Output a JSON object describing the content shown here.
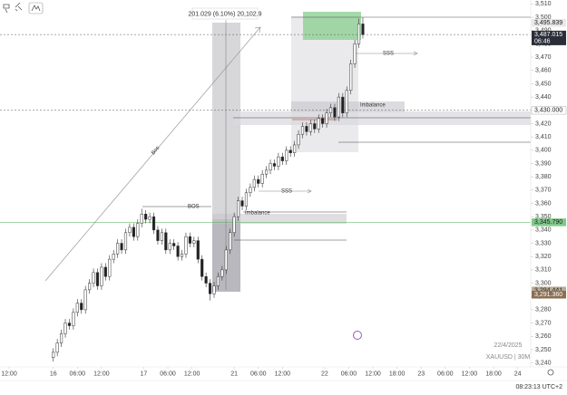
{
  "chart_data": {
    "type": "candlestick",
    "measure_label": "201.029 (6.10%) 20,102.9",
    "annotations": [
      "BOS",
      "Imbalance",
      "Imbalance",
      "SSS",
      "SSS",
      "Bos"
    ],
    "date": "22/4/2025",
    "symbol": "XAUUSD | 30M",
    "clock": "08:23:13 UTC+2",
    "countdown": "06:46",
    "up_color": "#ffffff",
    "down_color": "#222222",
    "xlim": [
      -4.5,
      259.5
    ],
    "ylim": [
      3237,
      3513
    ],
    "xticks": [
      {
        "value": 0,
        "label": "12:00"
      },
      {
        "value": 22,
        "label": "16"
      },
      {
        "value": 34,
        "label": "06:00"
      },
      {
        "value": 46,
        "label": "12:00"
      },
      {
        "value": 67,
        "label": "17"
      },
      {
        "value": 79,
        "label": "06:00"
      },
      {
        "value": 91,
        "label": "12:00"
      },
      {
        "value": 112,
        "label": "21"
      },
      {
        "value": 124,
        "label": "06:00"
      },
      {
        "value": 136,
        "label": "12:00"
      },
      {
        "value": 157,
        "label": "22"
      },
      {
        "value": 169,
        "label": "06:00"
      },
      {
        "value": 181,
        "label": "12:00"
      },
      {
        "value": 193,
        "label": "18:00"
      },
      {
        "value": 205,
        "label": "23"
      },
      {
        "value": 217,
        "label": "06:00"
      },
      {
        "value": 229,
        "label": "12:00"
      },
      {
        "value": 241,
        "label": "18:00"
      },
      {
        "value": 253,
        "label": "24"
      }
    ],
    "yticks": [
      {
        "value": 3510,
        "label": "3,510"
      },
      {
        "value": 3500,
        "label": "3,500"
      },
      {
        "value": 3490,
        "label": "3,490"
      },
      {
        "value": 3480,
        "label": "3,480"
      },
      {
        "value": 3470,
        "label": "3,470"
      },
      {
        "value": 3460,
        "label": "3,460"
      },
      {
        "value": 3450,
        "label": "3,450"
      },
      {
        "value": 3440,
        "label": "3,440"
      },
      {
        "value": 3430,
        "label": "3,430"
      },
      {
        "value": 3420,
        "label": "3,420"
      },
      {
        "value": 3410,
        "label": "3,410"
      },
      {
        "value": 3400,
        "label": "3,400"
      },
      {
        "value": 3390,
        "label": "3,390"
      },
      {
        "value": 3380,
        "label": "3,380"
      },
      {
        "value": 3370,
        "label": "3,370"
      },
      {
        "value": 3360,
        "label": "3,360"
      },
      {
        "value": 3350,
        "label": "3,350"
      },
      {
        "value": 3340,
        "label": "3,340"
      },
      {
        "value": 3330,
        "label": "3,330"
      },
      {
        "value": 3320,
        "label": "3,320"
      },
      {
        "value": 3310,
        "label": "3,310"
      },
      {
        "value": 3300,
        "label": "3,300"
      },
      {
        "value": 3290,
        "label": "3,290"
      },
      {
        "value": 3280,
        "label": "3,280"
      },
      {
        "value": 3270,
        "label": "3,270"
      },
      {
        "value": 3260,
        "label": "3,260"
      },
      {
        "value": 3250,
        "label": "3,250"
      },
      {
        "value": 3240,
        "label": "3,240"
      }
    ],
    "price_labels": [
      {
        "value": 3495.839,
        "label": "3,495.839",
        "color": "#e8e8e8"
      },
      {
        "value": 3487.015,
        "label": "3,487.015",
        "color": "#2a2e39"
      },
      {
        "value": 3430.0,
        "label": "3,430.000",
        "color": "#ffffff"
      },
      {
        "value": 3345.79,
        "label": "3,345.790",
        "color": "#7fc98a"
      },
      {
        "value": 3294.441,
        "label": "3,294.441",
        "color": "#b9ab95"
      },
      {
        "value": 3291.36,
        "label": "3,291.360",
        "color": "#8c6f52"
      }
    ],
    "x": [
      22,
      24,
      26,
      28,
      30,
      32,
      34,
      36,
      38,
      40,
      42,
      44,
      46,
      48,
      50,
      52,
      54,
      56,
      58,
      60,
      62,
      64,
      66,
      68,
      70,
      72,
      74,
      76,
      78,
      80,
      82,
      84,
      86,
      88,
      90,
      92,
      94,
      96,
      98,
      100,
      102,
      104,
      106,
      108,
      110,
      112,
      114,
      116,
      118,
      120,
      122,
      124,
      126,
      128,
      130,
      132,
      134,
      136,
      138,
      140,
      142,
      144,
      146,
      148,
      150,
      152,
      154,
      156,
      158,
      160,
      162,
      164,
      166,
      168,
      170,
      172,
      174,
      176
    ],
    "open": [
      3244,
      3248,
      3255,
      3262,
      3270,
      3268,
      3278,
      3285,
      3280,
      3295,
      3300,
      3308,
      3298,
      3312,
      3305,
      3318,
      3322,
      3330,
      3325,
      3338,
      3342,
      3335,
      3345,
      3352,
      3348,
      3350,
      3340,
      3332,
      3338,
      3325,
      3330,
      3328,
      3320,
      3322,
      3335,
      3330,
      3332,
      3318,
      3305,
      3300,
      3292,
      3298,
      3305,
      3310,
      3325,
      3338,
      3350,
      3362,
      3358,
      3368,
      3372,
      3378,
      3375,
      3382,
      3385,
      3390,
      3388,
      3395,
      3392,
      3400,
      3398,
      3404,
      3412,
      3418,
      3414,
      3420,
      3416,
      3424,
      3420,
      3428,
      3432,
      3425,
      3440,
      3428,
      3445,
      3465,
      3480,
      3495
    ],
    "high": [
      3251,
      3258,
      3265,
      3273,
      3273,
      3281,
      3288,
      3288,
      3298,
      3303,
      3311,
      3311,
      3315,
      3315,
      3321,
      3325,
      3333,
      3333,
      3341,
      3345,
      3345,
      3348,
      3356,
      3355,
      3353,
      3353,
      3343,
      3341,
      3341,
      3333,
      3333,
      3331,
      3325,
      3338,
      3338,
      3335,
      3335,
      3321,
      3308,
      3303,
      3301,
      3308,
      3313,
      3328,
      3341,
      3353,
      3365,
      3365,
      3371,
      3375,
      3381,
      3381,
      3385,
      3388,
      3393,
      3393,
      3398,
      3398,
      3403,
      3403,
      3407,
      3415,
      3421,
      3421,
      3423,
      3423,
      3427,
      3427,
      3431,
      3435,
      3435,
      3443,
      3443,
      3448,
      3468,
      3483,
      3499,
      3500
    ],
    "low": [
      3241,
      3245,
      3252,
      3259,
      3265,
      3265,
      3275,
      3277,
      3277,
      3292,
      3297,
      3295,
      3295,
      3302,
      3302,
      3315,
      3319,
      3322,
      3322,
      3335,
      3332,
      3332,
      3342,
      3345,
      3345,
      3337,
      3329,
      3329,
      3322,
      3322,
      3325,
      3317,
      3317,
      3319,
      3327,
      3327,
      3315,
      3302,
      3297,
      3287,
      3289,
      3295,
      3302,
      3307,
      3322,
      3335,
      3347,
      3355,
      3355,
      3365,
      3369,
      3372,
      3372,
      3379,
      3382,
      3385,
      3385,
      3389,
      3389,
      3395,
      3395,
      3401,
      3409,
      3411,
      3411,
      3413,
      3413,
      3417,
      3417,
      3425,
      3422,
      3422,
      3425,
      3425,
      3442,
      3462,
      3477,
      3484
    ],
    "close": [
      3248,
      3255,
      3262,
      3270,
      3268,
      3278,
      3285,
      3280,
      3295,
      3300,
      3308,
      3298,
      3312,
      3305,
      3318,
      3322,
      3330,
      3325,
      3338,
      3342,
      3335,
      3345,
      3352,
      3348,
      3350,
      3340,
      3332,
      3338,
      3325,
      3330,
      3328,
      3320,
      3322,
      3335,
      3330,
      3332,
      3318,
      3305,
      3300,
      3292,
      3298,
      3305,
      3310,
      3325,
      3338,
      3350,
      3362,
      3358,
      3368,
      3372,
      3378,
      3375,
      3382,
      3385,
      3390,
      3388,
      3395,
      3392,
      3400,
      3398,
      3404,
      3412,
      3418,
      3414,
      3420,
      3416,
      3424,
      3420,
      3428,
      3432,
      3425,
      3440,
      3428,
      3445,
      3465,
      3480,
      3495,
      3487
    ]
  }
}
